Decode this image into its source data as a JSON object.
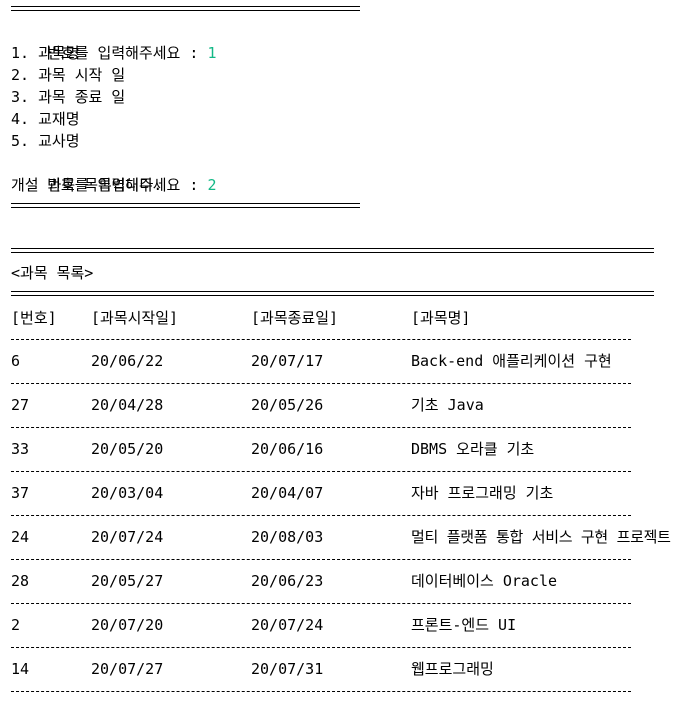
{
  "prompt1": {
    "label": "번호를 입력해주세요 : ",
    "value": "1"
  },
  "menu": [
    "1. 과목명",
    "2. 과목 시작 일",
    "3. 과목 종료 일",
    "4. 교재명",
    "5. 교사명"
  ],
  "prompt2": {
    "label": "번호를 입력해주세요 : ",
    "value": "2"
  },
  "notice": "개설 과목 목록입니다.",
  "list_title": "<과목 목록>",
  "headers": [
    "[번호]",
    "[과목시작일]",
    "[과목종료일]",
    "[과목명]"
  ],
  "rows": [
    [
      "6",
      "20/06/22",
      "20/07/17",
      "Back-end 애플리케이션 구현"
    ],
    [
      "27",
      "20/04/28",
      "20/05/26",
      "기초 Java"
    ],
    [
      "33",
      "20/05/20",
      "20/06/16",
      "DBMS 오라클 기초"
    ],
    [
      "37",
      "20/03/04",
      "20/04/07",
      "자바 프로그래밍 기초"
    ],
    [
      "24",
      "20/07/24",
      "20/08/03",
      "멀티 플랫폼 통합 서비스 구현 프로젝트"
    ],
    [
      "28",
      "20/05/27",
      "20/06/23",
      "데이터베이스 Oracle"
    ],
    [
      "2",
      "20/07/20",
      "20/07/24",
      "프론트-엔드 UI"
    ],
    [
      "14",
      "20/07/27",
      "20/07/31",
      "웹프로그래밍"
    ]
  ]
}
